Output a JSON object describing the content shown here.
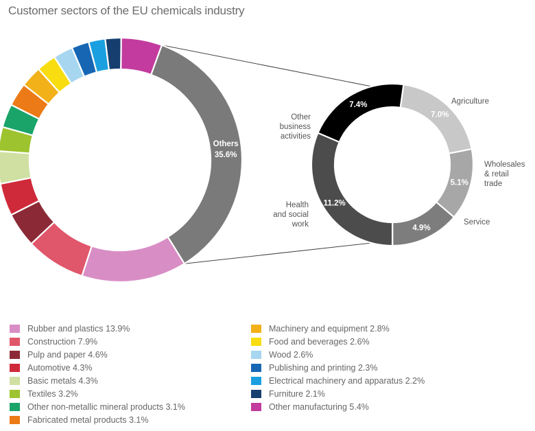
{
  "title": "Customer sectors of the EU chemicals industry",
  "chart_data": [
    {
      "type": "donut",
      "name": "main",
      "slices": [
        {
          "label": "Others",
          "value": 35.6,
          "color": "#7a7a7a",
          "display": "35.6%"
        },
        {
          "label": "Rubber and plastics",
          "value": 13.9,
          "color": "#d98dc5",
          "display": "13.9%"
        },
        {
          "label": "Construction",
          "value": 7.9,
          "color": "#e0566a",
          "display": "7.9%"
        },
        {
          "label": "Pulp and paper",
          "value": 4.6,
          "color": "#8b2a36",
          "display": "4.6%"
        },
        {
          "label": "Automotive",
          "value": 4.3,
          "color": "#cf2a3a",
          "display": "4.3%"
        },
        {
          "label": "Basic metals",
          "value": 4.3,
          "color": "#cfe0a2",
          "display": "4.3%"
        },
        {
          "label": "Textiles",
          "value": 3.2,
          "color": "#9dc32f",
          "display": "3.2%"
        },
        {
          "label": "Other non-metallic mineral products",
          "value": 3.1,
          "color": "#1aa46a",
          "display": "3.1%"
        },
        {
          "label": "Fabricated metal products",
          "value": 3.1,
          "color": "#ec7a16",
          "display": "3.1%"
        },
        {
          "label": "Machinery and equipment",
          "value": 2.8,
          "color": "#f2b019",
          "display": "2.8%"
        },
        {
          "label": "Food and beverages",
          "value": 2.6,
          "color": "#f8dd10",
          "display": "2.6%"
        },
        {
          "label": "Wood",
          "value": 2.6,
          "color": "#a7d6f0",
          "display": "2.6%"
        },
        {
          "label": "Publishing and printing",
          "value": 2.3,
          "color": "#1766b4",
          "display": "2.3%"
        },
        {
          "label": "Electrical machinery and apparatus",
          "value": 2.2,
          "color": "#1aa0e0",
          "display": "2.2%"
        },
        {
          "label": "Furniture",
          "value": 2.1,
          "color": "#163f6f",
          "display": "2.1%"
        },
        {
          "label": "Other manufacturing",
          "value": 5.4,
          "color": "#c33b9e",
          "display": "5.4%"
        }
      ],
      "center_label": "Others",
      "center_value": "35.6%"
    },
    {
      "type": "donut",
      "name": "breakdown of Others",
      "slices": [
        {
          "label": "Agriculture",
          "value": 7.0,
          "color": "#c8c8c8",
          "display": "7.0%",
          "text_color": "#ffffff"
        },
        {
          "label": "Wholesales & retail trade",
          "value": 5.1,
          "color": "#a7a7a7",
          "display": "5.1%",
          "text_color": "#ffffff"
        },
        {
          "label": "Service",
          "value": 4.9,
          "color": "#7d7d7d",
          "display": "4.9%",
          "text_color": "#ffffff"
        },
        {
          "label": "Health and social work",
          "value": 11.2,
          "color": "#4c4c4c",
          "display": "11.2%",
          "text_color": "#ffffff"
        },
        {
          "label": "Other business activities",
          "value": 7.4,
          "color": "#000000",
          "display": "7.4%",
          "text_color": "#ffffff"
        }
      ],
      "annotations": {
        "agriculture": [
          "Agriculture"
        ],
        "wholesale": [
          "Wholesales",
          "& retail",
          "trade"
        ],
        "service": [
          "Service"
        ],
        "health": [
          "Health",
          "and social",
          "work"
        ],
        "other_business": [
          "Other",
          "business",
          "activities"
        ]
      }
    }
  ],
  "legend_left": [
    {
      "text": "Rubber and plastics 13.9%",
      "color": "#d98dc5"
    },
    {
      "text": "Construction 7.9%",
      "color": "#e0566a"
    },
    {
      "text": "Pulp and paper 4.6%",
      "color": "#8b2a36"
    },
    {
      "text": "Automotive 4.3%",
      "color": "#cf2a3a"
    },
    {
      "text": "Basic metals 4.3%",
      "color": "#cfe0a2"
    },
    {
      "text": "Textiles 3.2%",
      "color": "#9dc32f"
    },
    {
      "text": "Other non-metallic mineral products 3.1%",
      "color": "#1aa46a"
    },
    {
      "text": "Fabricated metal products 3.1%",
      "color": "#ec7a16"
    }
  ],
  "legend_right": [
    {
      "text": "Machinery and equipment 2.8%",
      "color": "#f2b019"
    },
    {
      "text": "Food and beverages 2.6%",
      "color": "#f8dd10"
    },
    {
      "text": "Wood 2.6%",
      "color": "#a7d6f0"
    },
    {
      "text": "Publishing and printing 2.3%",
      "color": "#1766b4"
    },
    {
      "text": "Electrical machinery and apparatus 2.2%",
      "color": "#1aa0e0"
    },
    {
      "text": "Furniture 2.1%",
      "color": "#163f6f"
    },
    {
      "text": "Other manufacturing 5.4%",
      "color": "#c33b9e"
    }
  ]
}
